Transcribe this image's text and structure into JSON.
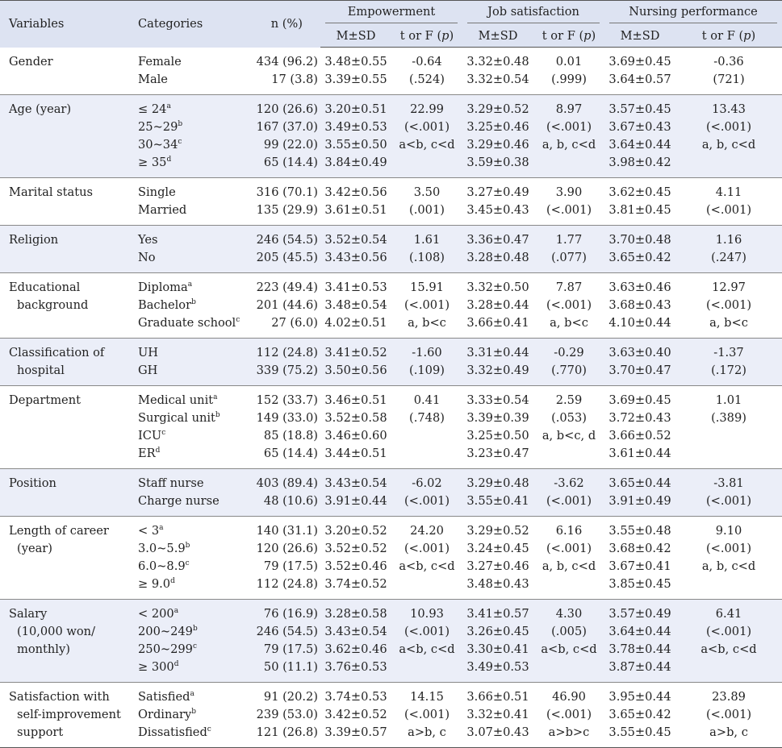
{
  "header": {
    "variables": "Variables",
    "categories": "Categories",
    "n_pct": "n (%)",
    "groups": [
      "Empowerment",
      "Job satisfaction",
      "Nursing performance"
    ],
    "msd": "M±SD",
    "test_prefix": "t or F (",
    "test_p": "p",
    "test_suffix": ")"
  },
  "rows": [
    {
      "variable": [
        "Gender"
      ],
      "lines": [
        {
          "cat": "Female",
          "sup": "",
          "n": "434 (96.2)",
          "e_ms": "3.48±0.55",
          "e_t": "-0.64",
          "j_ms": "3.32±0.48",
          "j_t": "0.01",
          "p_ms": "3.69±0.45",
          "p_t": "-0.36"
        },
        {
          "cat": "Male",
          "sup": "",
          "n": "17 (3.8)",
          "e_ms": "3.39±0.55",
          "e_t": "(.524)",
          "j_ms": "3.32±0.54",
          "j_t": "(.999)",
          "p_ms": "3.64±0.57",
          "p_t": "(721)"
        }
      ]
    },
    {
      "variable": [
        "Age (year)"
      ],
      "lines": [
        {
          "cat": "≤ 24",
          "sup": "a",
          "n": "120 (26.6)",
          "e_ms": "3.20±0.51",
          "e_t": "22.99",
          "j_ms": "3.29±0.52",
          "j_t": "8.97",
          "p_ms": "3.57±0.45",
          "p_t": "13.43"
        },
        {
          "cat": "25~29",
          "sup": "b",
          "n": "167 (37.0)",
          "e_ms": "3.49±0.53",
          "e_t": "(<.001)",
          "j_ms": "3.25±0.46",
          "j_t": "(<.001)",
          "p_ms": "3.67±0.43",
          "p_t": "(<.001)"
        },
        {
          "cat": "30~34",
          "sup": "c",
          "n": "99 (22.0)",
          "e_ms": "3.55±0.50",
          "e_t": "a<b, c<d",
          "j_ms": "3.29±0.46",
          "j_t": "a, b, c<d",
          "p_ms": "3.64±0.44",
          "p_t": "a, b, c<d"
        },
        {
          "cat": "≥ 35",
          "sup": "d",
          "n": "65 (14.4)",
          "e_ms": "3.84±0.49",
          "e_t": "",
          "j_ms": "3.59±0.38",
          "j_t": "",
          "p_ms": "3.98±0.42",
          "p_t": ""
        }
      ]
    },
    {
      "variable": [
        "Marital status"
      ],
      "lines": [
        {
          "cat": "Single",
          "sup": "",
          "n": "316 (70.1)",
          "e_ms": "3.42±0.56",
          "e_t": "3.50",
          "j_ms": "3.27±0.49",
          "j_t": "3.90",
          "p_ms": "3.62±0.45",
          "p_t": "4.11"
        },
        {
          "cat": "Married",
          "sup": "",
          "n": "135 (29.9)",
          "e_ms": "3.61±0.51",
          "e_t": "(.001)",
          "j_ms": "3.45±0.43",
          "j_t": "(<.001)",
          "p_ms": "3.81±0.45",
          "p_t": "(<.001)"
        }
      ]
    },
    {
      "variable": [
        "Religion"
      ],
      "lines": [
        {
          "cat": "Yes",
          "sup": "",
          "n": "246 (54.5)",
          "e_ms": "3.52±0.54",
          "e_t": "1.61",
          "j_ms": "3.36±0.47",
          "j_t": "1.77",
          "p_ms": "3.70±0.48",
          "p_t": "1.16"
        },
        {
          "cat": "No",
          "sup": "",
          "n": "205 (45.5)",
          "e_ms": "3.43±0.56",
          "e_t": "(.108)",
          "j_ms": "3.28±0.48",
          "j_t": "(.077)",
          "p_ms": "3.65±0.42",
          "p_t": "(.247)"
        }
      ]
    },
    {
      "variable": [
        "Educational",
        "background"
      ],
      "lines": [
        {
          "cat": "Diploma",
          "sup": "a",
          "n": "223 (49.4)",
          "e_ms": "3.41±0.53",
          "e_t": "15.91",
          "j_ms": "3.32±0.50",
          "j_t": "7.87",
          "p_ms": "3.63±0.46",
          "p_t": "12.97"
        },
        {
          "cat": "Bachelor",
          "sup": "b",
          "n": "201 (44.6)",
          "e_ms": "3.48±0.54",
          "e_t": "(<.001)",
          "j_ms": "3.28±0.44",
          "j_t": "(<.001)",
          "p_ms": "3.68±0.43",
          "p_t": "(<.001)"
        },
        {
          "cat": "Graduate school",
          "sup": "c",
          "n": "27 (6.0)",
          "e_ms": "4.02±0.51",
          "e_t": "a, b<c",
          "j_ms": "3.66±0.41",
          "j_t": "a, b<c",
          "p_ms": "4.10±0.44",
          "p_t": "a, b<c"
        }
      ]
    },
    {
      "variable": [
        "Classification of",
        "hospital"
      ],
      "lines": [
        {
          "cat": "UH",
          "sup": "",
          "n": "112 (24.8)",
          "e_ms": "3.41±0.52",
          "e_t": "-1.60",
          "j_ms": "3.31±0.44",
          "j_t": "-0.29",
          "p_ms": "3.63±0.40",
          "p_t": "-1.37"
        },
        {
          "cat": "GH",
          "sup": "",
          "n": "339 (75.2)",
          "e_ms": "3.50±0.56",
          "e_t": "(.109)",
          "j_ms": "3.32±0.49",
          "j_t": "(.770)",
          "p_ms": "3.70±0.47",
          "p_t": "(.172)"
        }
      ]
    },
    {
      "variable": [
        "Department"
      ],
      "lines": [
        {
          "cat": "Medical unit",
          "sup": "a",
          "n": "152 (33.7)",
          "e_ms": "3.46±0.51",
          "e_t": "0.41",
          "j_ms": "3.33±0.54",
          "j_t": "2.59",
          "p_ms": "3.69±0.45",
          "p_t": "1.01"
        },
        {
          "cat": "Surgical unit",
          "sup": "b",
          "n": "149 (33.0)",
          "e_ms": "3.52±0.58",
          "e_t": "(.748)",
          "j_ms": "3.39±0.39",
          "j_t": "(.053)",
          "p_ms": "3.72±0.43",
          "p_t": "(.389)"
        },
        {
          "cat": "ICU",
          "sup": "c",
          "n": "85 (18.8)",
          "e_ms": "3.46±0.60",
          "e_t": "",
          "j_ms": "3.25±0.50",
          "j_t": "a, b<c, d",
          "p_ms": "3.66±0.52",
          "p_t": ""
        },
        {
          "cat": "ER",
          "sup": "d",
          "n": "65 (14.4)",
          "e_ms": "3.44±0.51",
          "e_t": "",
          "j_ms": "3.23±0.47",
          "j_t": "",
          "p_ms": "3.61±0.44",
          "p_t": ""
        }
      ]
    },
    {
      "variable": [
        "Position"
      ],
      "lines": [
        {
          "cat": "Staff nurse",
          "sup": "",
          "n": "403 (89.4)",
          "e_ms": "3.43±0.54",
          "e_t": "-6.02",
          "j_ms": "3.29±0.48",
          "j_t": "-3.62",
          "p_ms": "3.65±0.44",
          "p_t": "-3.81"
        },
        {
          "cat": "Charge nurse",
          "sup": "",
          "n": "48 (10.6)",
          "e_ms": "3.91±0.44",
          "e_t": "(<.001)",
          "j_ms": "3.55±0.41",
          "j_t": "(<.001)",
          "p_ms": "3.91±0.49",
          "p_t": "(<.001)"
        }
      ]
    },
    {
      "variable": [
        "Length of career",
        "(year)"
      ],
      "lines": [
        {
          "cat": "< 3",
          "sup": "a",
          "n": "140 (31.1)",
          "e_ms": "3.20±0.52",
          "e_t": "24.20",
          "j_ms": "3.29±0.52",
          "j_t": "6.16",
          "p_ms": "3.55±0.48",
          "p_t": "9.10"
        },
        {
          "cat": "3.0~5.9",
          "sup": "b",
          "n": "120 (26.6)",
          "e_ms": "3.52±0.52",
          "e_t": "(<.001)",
          "j_ms": "3.24±0.45",
          "j_t": "(<.001)",
          "p_ms": "3.68±0.42",
          "p_t": "(<.001)"
        },
        {
          "cat": "6.0~8.9",
          "sup": "c",
          "n": "79 (17.5)",
          "e_ms": "3.52±0.46",
          "e_t": "a<b, c<d",
          "j_ms": "3.27±0.46",
          "j_t": "a, b, c<d",
          "p_ms": "3.67±0.41",
          "p_t": "a, b, c<d"
        },
        {
          "cat": "≥ 9.0",
          "sup": "d",
          "n": "112 (24.8)",
          "e_ms": "3.74±0.52",
          "e_t": "",
          "j_ms": "3.48±0.43",
          "j_t": "",
          "p_ms": "3.85±0.45",
          "p_t": ""
        }
      ]
    },
    {
      "variable": [
        "Salary",
        "(10,000 won/",
        "monthly)"
      ],
      "lines": [
        {
          "cat": "< 200",
          "sup": "a",
          "n": "76 (16.9)",
          "e_ms": "3.28±0.58",
          "e_t": "10.93",
          "j_ms": "3.41±0.57",
          "j_t": "4.30",
          "p_ms": "3.57±0.49",
          "p_t": "6.41"
        },
        {
          "cat": "200~249",
          "sup": "b",
          "n": "246 (54.5)",
          "e_ms": "3.43±0.54",
          "e_t": "(<.001)",
          "j_ms": "3.26±0.45",
          "j_t": "(.005)",
          "p_ms": "3.64±0.44",
          "p_t": "(<.001)"
        },
        {
          "cat": "250~299",
          "sup": "c",
          "n": "79 (17.5)",
          "e_ms": "3.62±0.46",
          "e_t": "a<b, c<d",
          "j_ms": "3.30±0.41",
          "j_t": "a<b, c<d",
          "p_ms": "3.78±0.44",
          "p_t": "a<b, c<d"
        },
        {
          "cat": "≥ 300",
          "sup": "d",
          "n": "50 (11.1)",
          "e_ms": "3.76±0.53",
          "e_t": "",
          "j_ms": "3.49±0.53",
          "j_t": "",
          "p_ms": "3.87±0.44",
          "p_t": ""
        }
      ]
    },
    {
      "variable": [
        "Satisfaction with",
        "self-improvement",
        "support"
      ],
      "lines": [
        {
          "cat": "Satisfied",
          "sup": "a",
          "n": "91 (20.2)",
          "e_ms": "3.74±0.53",
          "e_t": "14.15",
          "j_ms": "3.66±0.51",
          "j_t": "46.90",
          "p_ms": "3.95±0.44",
          "p_t": "23.89"
        },
        {
          "cat": "Ordinary",
          "sup": "b",
          "n": "239 (53.0)",
          "e_ms": "3.42±0.52",
          "e_t": "(<.001)",
          "j_ms": "3.32±0.41",
          "j_t": "(<.001)",
          "p_ms": "3.65±0.42",
          "p_t": "(<.001)"
        },
        {
          "cat": "Dissatisfied",
          "sup": "c",
          "n": "121 (26.8)",
          "e_ms": "3.39±0.57",
          "e_t": "a>b, c",
          "j_ms": "3.07±0.43",
          "j_t": "a>b>c",
          "p_ms": "3.55±0.45",
          "p_t": "a>b, c"
        }
      ]
    }
  ]
}
